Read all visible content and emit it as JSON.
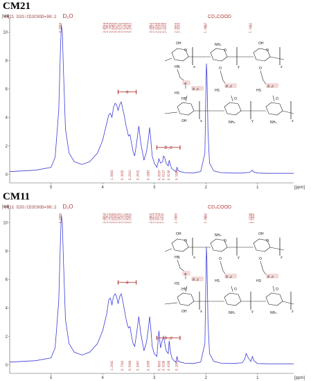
{
  "colors": {
    "spectrum": "#3a3ad8",
    "annotation": "#b23a3a",
    "structure": "#222222",
    "highlight": "#f4d9d9"
  },
  "panels": [
    {
      "label": "CM21",
      "header": "CM21  D2O:CD3COOD=98:2",
      "y_unit": "[rel]",
      "y_ticks": [
        "0",
        "2",
        "4",
        "6",
        "8",
        "10"
      ],
      "x_unit": "[ppm]",
      "x_ticks": [
        "5",
        "4",
        "3",
        "2",
        "1"
      ],
      "solvent_label": "D₂O",
      "acid_label": "CD₃COOD",
      "peak_d2o": "4.7990",
      "peak_acid": "1.9887",
      "peak_right": "1.1001",
      "peak_group_a": [
        "3.8594",
        "3.7864",
        "3.7008",
        "3.6449",
        "3.6279",
        "3.5791",
        "3.5176",
        "3.5148",
        "3.4120",
        "3.3762"
      ],
      "peak_group_b": [
        "3.0862",
        "2.9073",
        "2.8248",
        "2.8106",
        "2.7138",
        "2.6916"
      ],
      "peak_group_c": [
        "2.5650",
        "2.5535"
      ],
      "integrals": [
        "1.0803",
        "0.3935",
        "0.2931",
        "0.2632",
        "0.1883",
        "0.0597",
        "0.0127",
        "0.0136",
        "0.1086"
      ],
      "bracket_a": "a",
      "bracket_bc": "b ,c",
      "struct_labels": {
        "nh2": "NH₂",
        "hn": "HN",
        "o": "O",
        "oh": "OH",
        "hs": "HS",
        "x": "x",
        "y": "y",
        "z": "z",
        "a": "a",
        "bc": "b ,c"
      }
    },
    {
      "label": "CM11",
      "header": "CM11  D2O:CD3COOD=98:2",
      "y_unit": "[rel]",
      "y_ticks": [
        "0",
        "2",
        "4",
        "6",
        "8",
        "10"
      ],
      "x_unit": "[ppm]",
      "x_ticks": [
        "5",
        "4",
        "3",
        "2",
        "1"
      ],
      "solvent_label": "D₂O",
      "acid_label": "CD₃COOD",
      "peak_d2o": "4.7990",
      "peak_acid": "1.9882",
      "peak_right": "1.2278",
      "peak_right2": "1.1072",
      "peak_group_a": [
        "3.8894",
        "3.7561",
        "3.7028",
        "3.6538",
        "3.6399",
        "3.5870",
        "3.5187",
        "3.5152",
        "3.4166",
        "3.3792"
      ],
      "peak_group_b": [
        "3.0860",
        "2.8074",
        "2.8254",
        "2.7134",
        "2.6916"
      ],
      "peak_group_c": [
        "2.5889"
      ],
      "integrals": [
        "1.2941",
        "0.7163",
        "0.5984",
        "0.3067",
        "0.2000",
        "0.0603",
        "0.0236",
        "0.0168",
        "0.1082"
      ],
      "bracket_a": "a",
      "bracket_bc": "b ,c",
      "struct_labels": {
        "nh2": "NH₂",
        "hn": "HN",
        "o": "O",
        "oh": "OH",
        "hs": "HS",
        "x": "x",
        "y": "y",
        "z": "z",
        "a": "a",
        "bc": "b ,c"
      }
    }
  ],
  "chart_data": [
    {
      "type": "line",
      "title": "CM21",
      "xlabel": "[ppm]",
      "ylabel": "[rel]",
      "xlim": [
        5.8,
        0.3
      ],
      "ylim": [
        -0.3,
        10.8
      ],
      "x_reversed": true,
      "series": [
        {
          "x": [
            5.8,
            5.3,
            5.0,
            4.92,
            4.85,
            4.82,
            4.8,
            4.78,
            4.76,
            4.72,
            4.65,
            4.55,
            4.4,
            4.25,
            4.1,
            4.0,
            3.92,
            3.88,
            3.85,
            3.82,
            3.79,
            3.76,
            3.73,
            3.7,
            3.67,
            3.64,
            3.61,
            3.58,
            3.55,
            3.52,
            3.5,
            3.47,
            3.44,
            3.41,
            3.38,
            3.35,
            3.3,
            3.26,
            3.2,
            3.15,
            3.11,
            3.09,
            3.07,
            3.04,
            3.0,
            2.95,
            2.91,
            2.88,
            2.84,
            2.82,
            2.8,
            2.77,
            2.73,
            2.71,
            2.69,
            2.66,
            2.62,
            2.58,
            2.56,
            2.54,
            2.5,
            2.4,
            2.25,
            2.1,
            2.02,
            2.0,
            1.99,
            1.98,
            1.96,
            1.93,
            1.85,
            1.7,
            1.5,
            1.3,
            1.15,
            1.12,
            1.1,
            1.08,
            1.0,
            0.8,
            0.6,
            0.3
          ],
          "y": [
            0.2,
            0.3,
            0.5,
            1.2,
            4.5,
            8.5,
            10.5,
            10.0,
            7.5,
            3.2,
            1.5,
            0.9,
            0.7,
            0.9,
            1.5,
            2.4,
            3.6,
            4.2,
            4.3,
            4.0,
            4.7,
            5.0,
            4.9,
            4.5,
            4.9,
            5.1,
            4.6,
            4.1,
            3.5,
            3.0,
            2.7,
            2.8,
            2.2,
            1.6,
            1.3,
            2.0,
            3.4,
            2.2,
            1.0,
            1.6,
            2.6,
            3.3,
            2.6,
            1.3,
            0.8,
            0.5,
            1.1,
            0.8,
            0.9,
            1.3,
            1.2,
            0.8,
            0.6,
            1.0,
            0.7,
            0.4,
            0.3,
            0.2,
            0.5,
            0.3,
            0.2,
            0.12,
            0.1,
            0.2,
            1.5,
            6.0,
            7.8,
            7.0,
            3.0,
            0.8,
            0.25,
            0.12,
            0.1,
            0.1,
            0.15,
            0.25,
            0.3,
            0.18,
            0.1,
            0.08,
            0.08,
            0.08
          ]
        }
      ]
    },
    {
      "type": "line",
      "title": "CM11",
      "xlabel": "[ppm]",
      "ylabel": "[rel]",
      "xlim": [
        5.8,
        0.3
      ],
      "ylim": [
        -0.3,
        10.8
      ],
      "x_reversed": true,
      "series": [
        {
          "x": [
            5.8,
            5.3,
            5.0,
            4.92,
            4.85,
            4.82,
            4.8,
            4.78,
            4.76,
            4.72,
            4.65,
            4.55,
            4.4,
            4.25,
            4.1,
            4.0,
            3.92,
            3.88,
            3.85,
            3.82,
            3.79,
            3.76,
            3.73,
            3.7,
            3.67,
            3.64,
            3.61,
            3.58,
            3.55,
            3.52,
            3.5,
            3.47,
            3.44,
            3.41,
            3.38,
            3.35,
            3.3,
            3.26,
            3.2,
            3.15,
            3.11,
            3.09,
            3.07,
            3.04,
            3.0,
            2.95,
            2.91,
            2.88,
            2.84,
            2.82,
            2.8,
            2.77,
            2.73,
            2.71,
            2.69,
            2.66,
            2.62,
            2.58,
            2.56,
            2.54,
            2.5,
            2.4,
            2.25,
            2.1,
            2.02,
            2.0,
            1.99,
            1.98,
            1.96,
            1.93,
            1.85,
            1.7,
            1.5,
            1.3,
            1.25,
            1.22,
            1.18,
            1.13,
            1.1,
            1.07,
            1.0,
            0.8,
            0.6,
            0.3
          ],
          "y": [
            0.2,
            0.3,
            0.5,
            1.2,
            4.5,
            8.5,
            10.5,
            10.0,
            7.5,
            3.2,
            1.5,
            0.9,
            0.7,
            0.9,
            1.5,
            2.4,
            3.6,
            4.6,
            4.7,
            4.2,
            4.8,
            5.0,
            4.8,
            4.3,
            4.8,
            5.0,
            4.5,
            3.9,
            3.3,
            2.8,
            2.6,
            2.7,
            2.0,
            1.5,
            1.3,
            2.0,
            3.4,
            2.2,
            1.0,
            1.6,
            2.7,
            3.4,
            2.7,
            1.3,
            0.8,
            0.6,
            2.4,
            1.2,
            1.8,
            2.0,
            1.6,
            1.0,
            0.8,
            1.7,
            1.0,
            0.5,
            0.3,
            0.2,
            0.6,
            0.3,
            0.2,
            0.12,
            0.1,
            0.2,
            1.5,
            6.0,
            8.3,
            7.2,
            3.0,
            0.8,
            0.25,
            0.12,
            0.1,
            0.15,
            0.4,
            0.8,
            0.5,
            0.25,
            0.6,
            0.3,
            0.1,
            0.08,
            0.08,
            0.08
          ]
        }
      ]
    }
  ]
}
